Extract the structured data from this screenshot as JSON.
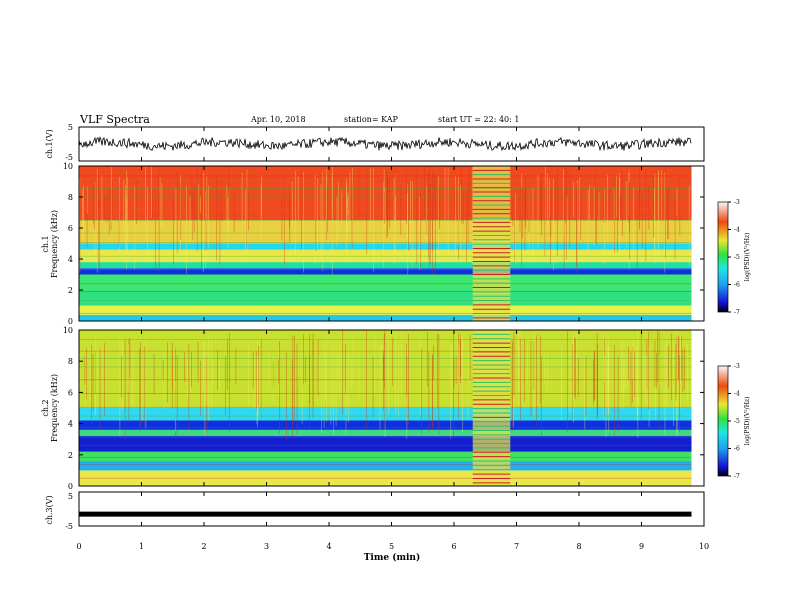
{
  "header": {
    "title": "VLF Spectra",
    "date": "Apr. 10, 2018",
    "station": "station= KAP",
    "start": "start  UT =   22: 40: 1"
  },
  "chart_data": [
    {
      "type": "line",
      "panel": "ch1-waveform",
      "ylabel": "ch.1(V)",
      "ylim": [
        -5,
        5
      ],
      "yticks": [
        "5",
        "-5"
      ],
      "description_note": "noisy waveform oscillating roughly between -2 and 2 V",
      "xlim": [
        0,
        10
      ]
    },
    {
      "type": "heatmap",
      "panel": "ch1-spectrogram",
      "ylabel": "ch.1 Frequency (kHz)",
      "ylim": [
        0,
        10
      ],
      "yticks": [
        "0",
        "2",
        "4",
        "6",
        "8",
        "10"
      ],
      "xlim": [
        0,
        9.8
      ],
      "bands": [
        {
          "from": 0,
          "to": 0.4,
          "color": "#22c8e8"
        },
        {
          "from": 0.4,
          "to": 1.0,
          "color": "#e8f04a"
        },
        {
          "from": 1.0,
          "to": 2.0,
          "color": "#30e080"
        },
        {
          "from": 2.0,
          "to": 3.0,
          "color": "#3ce870"
        },
        {
          "from": 3.0,
          "to": 3.4,
          "color": "#1030e0"
        },
        {
          "from": 3.4,
          "to": 3.8,
          "color": "#1ee0a0"
        },
        {
          "from": 3.8,
          "to": 4.6,
          "color": "#e8e84a"
        },
        {
          "from": 4.6,
          "to": 5.0,
          "color": "#22d8f0"
        },
        {
          "from": 5.0,
          "to": 6.5,
          "color": "#e8d040"
        },
        {
          "from": 6.5,
          "to": 10.0,
          "color": "#f04a20"
        }
      ],
      "gap_minutes": [
        6.3,
        6.9
      ],
      "colorbar": {
        "min": -7,
        "max": -3,
        "ticks": [
          "-3",
          "-4",
          "-5",
          "-6",
          "-7"
        ],
        "label": "log(PSD)(V²/Hz)"
      }
    },
    {
      "type": "heatmap",
      "panel": "ch2-spectrogram",
      "ylabel": "ch.2 Frequency (kHz)",
      "ylim": [
        0,
        10
      ],
      "yticks": [
        "0",
        "2",
        "4",
        "6",
        "8",
        "10"
      ],
      "xlim": [
        0,
        9.8
      ],
      "bands": [
        {
          "from": 0,
          "to": 1.0,
          "color": "#e8e848"
        },
        {
          "from": 1.0,
          "to": 1.6,
          "color": "#20b0f0"
        },
        {
          "from": 1.6,
          "to": 2.2,
          "color": "#40e060"
        },
        {
          "from": 2.2,
          "to": 3.2,
          "color": "#1020d0"
        },
        {
          "from": 3.2,
          "to": 3.6,
          "color": "#40d880"
        },
        {
          "from": 3.6,
          "to": 4.2,
          "color": "#1030e0"
        },
        {
          "from": 4.2,
          "to": 5.0,
          "color": "#30d8f0"
        },
        {
          "from": 5.0,
          "to": 10.0,
          "color": "#c8e030"
        }
      ],
      "gap_minutes": [
        6.3,
        6.9
      ],
      "colorbar": {
        "min": -7,
        "max": -3,
        "ticks": [
          "-3",
          "-4",
          "-5",
          "-6",
          "-7"
        ],
        "label": "log(PSD)(V²/Hz)"
      }
    },
    {
      "type": "line",
      "panel": "ch3-waveform",
      "ylabel": "ch.3(V)",
      "ylim": [
        -5,
        5
      ],
      "yticks": [
        "5",
        "-5"
      ],
      "values_constant": -1.5,
      "xlim": [
        0,
        10
      ]
    }
  ],
  "xaxis": {
    "label": "Time  (min)",
    "ticks": [
      "0",
      "1",
      "2",
      "3",
      "4",
      "5",
      "6",
      "7",
      "8",
      "9",
      "10"
    ],
    "range": [
      0,
      10
    ]
  }
}
